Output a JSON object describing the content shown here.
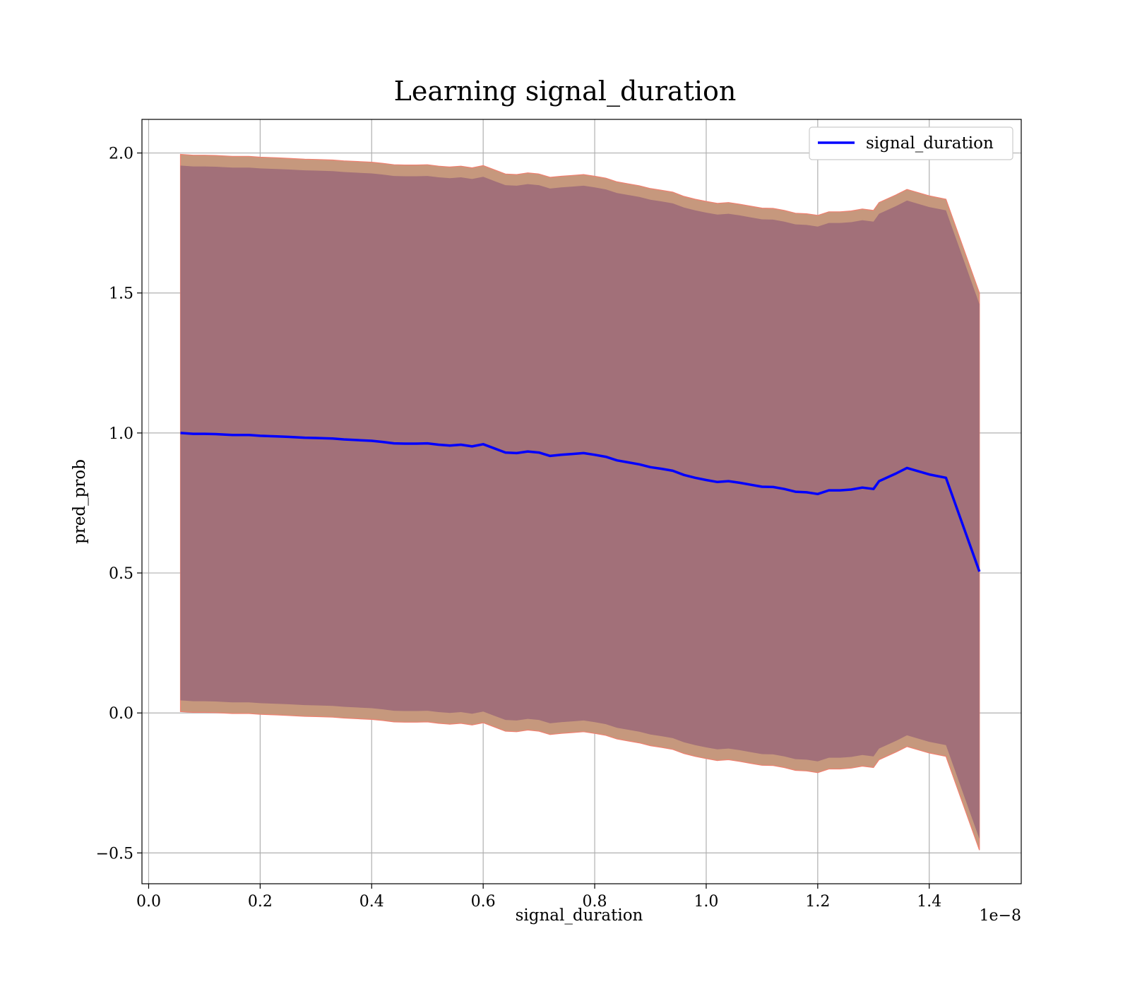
{
  "chart_data": {
    "type": "line",
    "title": "Learning signal_duration",
    "xlabel": "signal_duration",
    "ylabel": "pred_prob",
    "x_offset_text": "1e−8",
    "xlim": [
      -0.012,
      1.565
    ],
    "ylim": [
      -0.61,
      2.12
    ],
    "x_ticks": [
      0.0,
      0.2,
      0.4,
      0.6,
      0.8,
      1.0,
      1.2,
      1.4
    ],
    "x_tick_labels": [
      "0.0",
      "0.2",
      "0.4",
      "0.6",
      "0.8",
      "1.0",
      "1.2",
      "1.4"
    ],
    "y_ticks": [
      -0.5,
      0.0,
      0.5,
      1.0,
      1.5,
      2.0
    ],
    "y_tick_labels": [
      "−0.5",
      "0.0",
      "0.5",
      "1.0",
      "1.5",
      "2.0"
    ],
    "grid": true,
    "legend": {
      "position": "top-right",
      "entries": [
        "signal_duration"
      ]
    },
    "series": [
      {
        "name": "signal_duration",
        "color": "#0000ff",
        "x": [
          0.057,
          0.08,
          0.1,
          0.12,
          0.15,
          0.18,
          0.2,
          0.23,
          0.25,
          0.28,
          0.3,
          0.33,
          0.35,
          0.38,
          0.4,
          0.42,
          0.44,
          0.46,
          0.48,
          0.5,
          0.52,
          0.54,
          0.56,
          0.58,
          0.6,
          0.62,
          0.64,
          0.66,
          0.68,
          0.7,
          0.72,
          0.74,
          0.76,
          0.78,
          0.8,
          0.82,
          0.84,
          0.86,
          0.88,
          0.9,
          0.92,
          0.94,
          0.96,
          0.98,
          1.0,
          1.02,
          1.04,
          1.06,
          1.08,
          1.1,
          1.12,
          1.14,
          1.16,
          1.18,
          1.2,
          1.22,
          1.24,
          1.26,
          1.28,
          1.3,
          1.31,
          1.34,
          1.36,
          1.4,
          1.43,
          1.49
        ],
        "y": [
          1.0,
          0.997,
          0.997,
          0.996,
          0.993,
          0.993,
          0.99,
          0.988,
          0.986,
          0.983,
          0.982,
          0.98,
          0.977,
          0.974,
          0.972,
          0.968,
          0.963,
          0.962,
          0.962,
          0.963,
          0.958,
          0.955,
          0.958,
          0.952,
          0.96,
          0.945,
          0.93,
          0.928,
          0.934,
          0.93,
          0.918,
          0.922,
          0.925,
          0.928,
          0.922,
          0.915,
          0.902,
          0.895,
          0.888,
          0.878,
          0.872,
          0.865,
          0.85,
          0.84,
          0.832,
          0.825,
          0.828,
          0.822,
          0.815,
          0.808,
          0.807,
          0.8,
          0.79,
          0.788,
          0.782,
          0.795,
          0.795,
          0.798,
          0.805,
          0.8,
          0.828,
          0.855,
          0.875,
          0.852,
          0.84,
          0.505
        ],
        "band_inner_halfwidth": [
          0.955,
          0.955,
          0.955,
          0.955,
          0.955,
          0.955,
          0.955,
          0.955,
          0.955,
          0.955,
          0.955,
          0.955,
          0.955,
          0.955,
          0.955,
          0.955,
          0.955,
          0.955,
          0.955,
          0.955,
          0.955,
          0.955,
          0.955,
          0.955,
          0.955,
          0.955,
          0.955,
          0.955,
          0.955,
          0.955,
          0.955,
          0.955,
          0.955,
          0.955,
          0.955,
          0.955,
          0.955,
          0.955,
          0.955,
          0.955,
          0.955,
          0.955,
          0.955,
          0.955,
          0.955,
          0.955,
          0.955,
          0.955,
          0.955,
          0.955,
          0.955,
          0.955,
          0.955,
          0.955,
          0.955,
          0.955,
          0.955,
          0.955,
          0.955,
          0.955,
          0.955,
          0.955,
          0.955,
          0.955,
          0.955,
          0.955
        ],
        "band_outer_halfwidth": [
          0.995,
          0.995,
          0.995,
          0.995,
          0.995,
          0.995,
          0.995,
          0.995,
          0.995,
          0.995,
          0.995,
          0.995,
          0.995,
          0.995,
          0.995,
          0.995,
          0.995,
          0.995,
          0.995,
          0.995,
          0.995,
          0.995,
          0.995,
          0.995,
          0.995,
          0.995,
          0.995,
          0.995,
          0.995,
          0.995,
          0.995,
          0.995,
          0.995,
          0.995,
          0.995,
          0.995,
          0.995,
          0.995,
          0.995,
          0.995,
          0.995,
          0.995,
          0.995,
          0.995,
          0.995,
          0.995,
          0.995,
          0.995,
          0.995,
          0.995,
          0.995,
          0.995,
          0.995,
          0.995,
          0.995,
          0.995,
          0.995,
          0.995,
          0.995,
          0.995,
          0.995,
          0.995,
          0.995,
          0.995,
          0.995,
          0.995
        ]
      }
    ],
    "colors": {
      "inner_band": "#a27079",
      "outer_band": "#c6987d",
      "outer_band_edge": "#f08070",
      "line": "#0000ff",
      "grid": "#b0b0b0"
    }
  }
}
